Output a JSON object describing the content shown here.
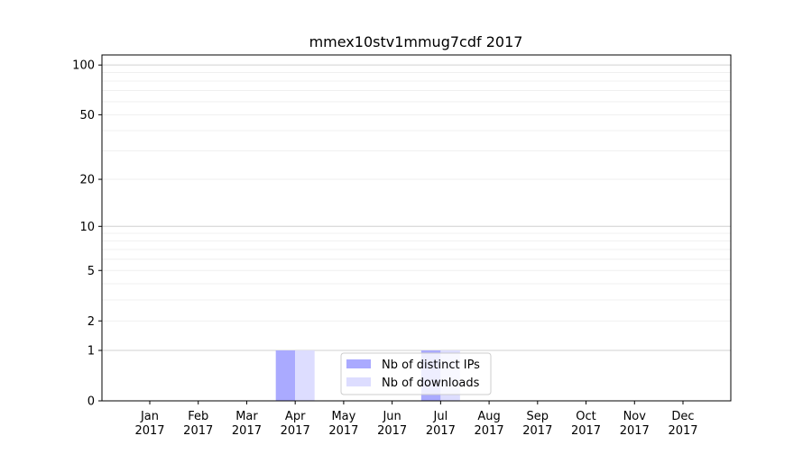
{
  "chart_data": {
    "type": "bar",
    "title": "mmex10stv1mmug7cdf 2017",
    "xlabel": "",
    "ylabel": "",
    "yscale": "log(1+y)",
    "ylim": [
      0,
      115
    ],
    "yticks": [
      0,
      1,
      2,
      5,
      10,
      20,
      50,
      100
    ],
    "grid": true,
    "legend_placement": "lower-center",
    "categories": [
      "Jan\n2017",
      "Feb\n2017",
      "Mar\n2017",
      "Apr\n2017",
      "May\n2017",
      "Jun\n2017",
      "Jul\n2017",
      "Aug\n2017",
      "Sep\n2017",
      "Oct\n2017",
      "Nov\n2017",
      "Dec\n2017"
    ],
    "series": [
      {
        "name": "Nb of distinct IPs",
        "color": "#aaaaff",
        "values": [
          0,
          0,
          0,
          1,
          0,
          0,
          1,
          0,
          0,
          0,
          0,
          0
        ]
      },
      {
        "name": "Nb of downloads",
        "color": "#ddddff",
        "values": [
          0,
          0,
          0,
          1,
          0,
          0,
          1,
          0,
          0,
          0,
          0,
          0
        ]
      }
    ]
  }
}
